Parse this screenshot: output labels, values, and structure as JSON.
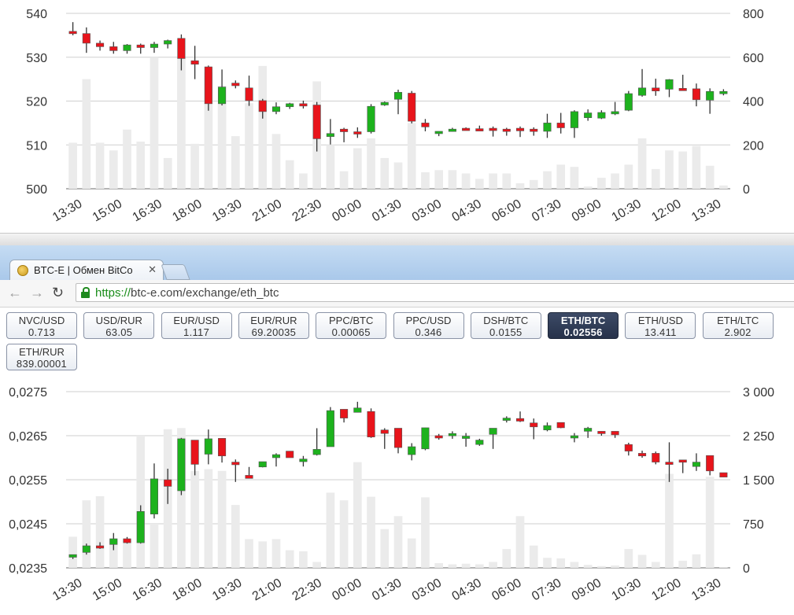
{
  "browser": {
    "tab_title": "BTC-E | Обмен BitCo",
    "tab_close": "✕",
    "url_scheme": "https://",
    "url_rest": "btc-e.com/exchange/eth_btc"
  },
  "pairs": [
    {
      "name": "NVC/USD",
      "price": "0.713",
      "active": false
    },
    {
      "name": "USD/RUR",
      "price": "63.05",
      "active": false
    },
    {
      "name": "EUR/USD",
      "price": "1.117",
      "active": false
    },
    {
      "name": "EUR/RUR",
      "price": "69.20035",
      "active": false
    },
    {
      "name": "PPC/BTC",
      "price": "0.00065",
      "active": false
    },
    {
      "name": "PPC/USD",
      "price": "0.346",
      "active": false
    },
    {
      "name": "DSH/BTC",
      "price": "0.0155",
      "active": false
    },
    {
      "name": "ETH/BTC",
      "price": "0.02556",
      "active": true
    },
    {
      "name": "ETH/USD",
      "price": "13.411",
      "active": false
    },
    {
      "name": "ETH/LTC",
      "price": "2.902",
      "active": false
    },
    {
      "name": "ETH/RUR",
      "price": "839.00001",
      "active": false
    }
  ],
  "chart_data": [
    {
      "type": "candlestick",
      "x_tick_labels": [
        "13:30",
        "15:00",
        "16:30",
        "18:00",
        "19:30",
        "21:00",
        "22:30",
        "00:00",
        "01:30",
        "03:00",
        "04:30",
        "06:00",
        "07:30",
        "09:00",
        "10:30",
        "12:00",
        "13:30"
      ],
      "y_left_ticks": [
        "500",
        "510",
        "520",
        "530",
        "540"
      ],
      "y_right_ticks": [
        "0",
        "200",
        "400",
        "600",
        "800"
      ],
      "ylim": [
        500,
        540
      ],
      "ylim_volume": [
        0,
        800
      ],
      "grid": true,
      "colors": {
        "up": "#1db21d",
        "down": "#e8141b",
        "volume": "#ebebeb",
        "wick": "#333333"
      },
      "candles": [
        [
          535.9,
          538.0,
          535.0,
          535.4,
          210
        ],
        [
          535.4,
          536.8,
          531.0,
          533.2,
          500
        ],
        [
          533.2,
          533.8,
          531.5,
          532.4,
          210
        ],
        [
          532.4,
          533.5,
          530.8,
          531.5,
          175
        ],
        [
          531.5,
          533.0,
          530.8,
          532.8,
          270
        ],
        [
          532.8,
          533.1,
          530.8,
          532.2,
          215
        ],
        [
          532.2,
          533.5,
          531.0,
          533.0,
          600
        ],
        [
          533.0,
          534.0,
          532.0,
          533.8,
          140
        ],
        [
          534.3,
          535.2,
          527.0,
          529.7,
          600
        ],
        [
          529.2,
          532.6,
          525.0,
          528.4,
          205
        ],
        [
          527.8,
          528.1,
          517.8,
          519.4,
          530
        ],
        [
          519.4,
          527.2,
          519.0,
          523.2,
          470
        ],
        [
          524.1,
          524.7,
          522.9,
          523.5,
          240
        ],
        [
          523.0,
          525.8,
          518.9,
          520.1,
          390
        ],
        [
          520.1,
          520.5,
          516.0,
          517.6,
          560
        ],
        [
          517.6,
          519.7,
          517.0,
          518.7,
          250
        ],
        [
          518.7,
          519.6,
          518.2,
          519.4,
          130
        ],
        [
          519.4,
          520.1,
          518.3,
          518.9,
          70
        ],
        [
          519.1,
          519.8,
          508.5,
          511.4,
          490
        ],
        [
          511.9,
          515.9,
          510.1,
          512.6,
          200
        ],
        [
          513.6,
          513.9,
          510.6,
          513.0,
          80
        ],
        [
          513.0,
          514.0,
          511.6,
          512.5,
          185
        ],
        [
          513.0,
          519.3,
          512.6,
          518.8,
          230
        ],
        [
          519.1,
          519.9,
          518.9,
          519.7,
          140
        ],
        [
          520.4,
          522.6,
          517.0,
          522.0,
          120
        ],
        [
          521.8,
          522.3,
          514.9,
          515.4,
          300
        ],
        [
          515.0,
          515.9,
          513.1,
          514.1,
          75
        ],
        [
          512.6,
          513.1,
          512.0,
          513.1,
          85
        ],
        [
          513.2,
          513.9,
          513.0,
          513.6,
          85
        ],
        [
          513.8,
          514.0,
          513.4,
          513.5,
          70
        ],
        [
          513.7,
          514.4,
          513.2,
          513.5,
          45
        ],
        [
          513.8,
          514.2,
          511.9,
          513.4,
          70
        ],
        [
          513.6,
          513.9,
          512.1,
          513.3,
          70
        ],
        [
          513.8,
          514.2,
          511.8,
          513.2,
          25
        ],
        [
          513.6,
          514.0,
          512.1,
          513.1,
          40
        ],
        [
          513.1,
          517.1,
          511.6,
          515.0,
          80
        ],
        [
          515.0,
          517.3,
          512.6,
          513.9,
          110
        ],
        [
          513.9,
          517.9,
          511.6,
          517.6,
          100
        ],
        [
          516.2,
          518.1,
          515.5,
          517.3,
          10
        ],
        [
          516.1,
          517.9,
          515.9,
          517.4,
          50
        ],
        [
          517.1,
          519.8,
          516.8,
          517.6,
          70
        ],
        [
          517.9,
          522.3,
          517.7,
          521.7,
          110
        ],
        [
          521.3,
          527.3,
          521.0,
          523.0,
          230
        ],
        [
          523.0,
          525.1,
          521.2,
          522.3,
          90
        ],
        [
          522.7,
          525.0,
          520.9,
          524.9,
          175
        ],
        [
          522.9,
          526.0,
          522.5,
          522.5,
          170
        ],
        [
          522.8,
          524.0,
          518.8,
          520.3,
          195
        ],
        [
          520.2,
          522.9,
          517.1,
          522.2,
          105
        ],
        [
          521.7,
          522.7,
          521.3,
          522.2,
          15
        ]
      ]
    },
    {
      "type": "candlestick",
      "x_tick_labels": [
        "13:30",
        "15:00",
        "16:30",
        "18:00",
        "19:30",
        "21:00",
        "22:30",
        "00:00",
        "01:30",
        "03:00",
        "04:30",
        "06:00",
        "07:30",
        "09:00",
        "10:30",
        "12:00",
        "13:30"
      ],
      "y_left_ticks": [
        "0,0235",
        "0,0245",
        "0,0255",
        "0,0265",
        "0,0275"
      ],
      "y_right_ticks": [
        "0",
        "750",
        "1 500",
        "2 250",
        "3 000"
      ],
      "ylim": [
        0.0235,
        0.0275
      ],
      "ylim_volume": [
        0,
        3000
      ],
      "grid": true,
      "colors": {
        "up": "#1db21d",
        "down": "#e8141b",
        "volume": "#ebebeb",
        "wick": "#333333"
      },
      "candles": [
        [
          0.02374,
          0.0238,
          0.0237,
          0.0238,
          530
        ],
        [
          0.02385,
          0.02405,
          0.0238,
          0.024,
          1150
        ],
        [
          0.024,
          0.02408,
          0.02393,
          0.02395,
          1220
        ],
        [
          0.02403,
          0.02429,
          0.0239,
          0.02416,
          470
        ],
        [
          0.02416,
          0.0242,
          0.02405,
          0.02407,
          480
        ],
        [
          0.02407,
          0.02492,
          0.02405,
          0.02478,
          2250
        ],
        [
          0.02472,
          0.02587,
          0.02462,
          0.02552,
          750
        ],
        [
          0.0255,
          0.02575,
          0.02495,
          0.02535,
          2360
        ],
        [
          0.02525,
          0.02645,
          0.02515,
          0.02643,
          2380
        ],
        [
          0.0264,
          0.0264,
          0.0256,
          0.02585,
          1650
        ],
        [
          0.02608,
          0.02664,
          0.02585,
          0.02643,
          1680
        ],
        [
          0.02644,
          0.02644,
          0.02589,
          0.02604,
          1650
        ],
        [
          0.0259,
          0.02596,
          0.02545,
          0.02584,
          1070
        ],
        [
          0.0256,
          0.02579,
          0.02553,
          0.02553,
          490
        ],
        [
          0.02579,
          0.02591,
          0.02578,
          0.02591,
          450
        ],
        [
          0.026,
          0.0261,
          0.0258,
          0.02607,
          490
        ],
        [
          0.02615,
          0.02615,
          0.026,
          0.026,
          300
        ],
        [
          0.02591,
          0.02604,
          0.0258,
          0.02597,
          280
        ],
        [
          0.02607,
          0.02667,
          0.02605,
          0.02619,
          100
        ],
        [
          0.02625,
          0.02715,
          0.02625,
          0.02707,
          1280
        ],
        [
          0.0271,
          0.0271,
          0.0268,
          0.0269,
          1150
        ],
        [
          0.02703,
          0.02727,
          0.02703,
          0.02713,
          1800
        ],
        [
          0.02705,
          0.02712,
          0.02645,
          0.02647,
          1210
        ],
        [
          0.02663,
          0.02667,
          0.0262,
          0.02655,
          660
        ],
        [
          0.02667,
          0.02667,
          0.0261,
          0.02623,
          880
        ],
        [
          0.02607,
          0.02633,
          0.02594,
          0.02625,
          500
        ],
        [
          0.0262,
          0.02668,
          0.02617,
          0.02668,
          1200
        ],
        [
          0.0265,
          0.02654,
          0.02641,
          0.02645,
          80
        ],
        [
          0.0265,
          0.0266,
          0.02643,
          0.02655,
          60
        ],
        [
          0.02645,
          0.02656,
          0.02625,
          0.02649,
          70
        ],
        [
          0.0263,
          0.02643,
          0.02627,
          0.0264,
          60
        ],
        [
          0.02653,
          0.02667,
          0.0262,
          0.02667,
          100
        ],
        [
          0.02687,
          0.02694,
          0.0268,
          0.0269,
          320
        ],
        [
          0.02689,
          0.02705,
          0.02681,
          0.02683,
          880
        ],
        [
          0.02679,
          0.02689,
          0.02642,
          0.0267,
          380
        ],
        [
          0.02663,
          0.0268,
          0.0266,
          0.02673,
          170
        ],
        [
          0.0268,
          0.0268,
          0.02667,
          0.02668,
          160
        ],
        [
          0.0265,
          0.02656,
          0.02635,
          0.0265,
          100
        ],
        [
          0.0266,
          0.0267,
          0.02645,
          0.02667,
          50
        ],
        [
          0.0266,
          0.0266,
          0.0265,
          0.02655,
          30
        ],
        [
          0.0266,
          0.0266,
          0.02645,
          0.02652,
          40
        ],
        [
          0.0263,
          0.02634,
          0.02605,
          0.02615,
          320
        ],
        [
          0.0261,
          0.02616,
          0.026,
          0.02604,
          220
        ],
        [
          0.0261,
          0.02614,
          0.02585,
          0.0259,
          100
        ],
        [
          0.0259,
          0.02635,
          0.02545,
          0.02585,
          1600
        ],
        [
          0.02595,
          0.02595,
          0.02565,
          0.0259,
          120
        ],
        [
          0.0258,
          0.0261,
          0.0257,
          0.0259,
          230
        ],
        [
          0.02605,
          0.02605,
          0.0256,
          0.0257,
          1550
        ],
        [
          0.02566,
          0.02566,
          0.02556,
          0.02556,
          10
        ]
      ]
    }
  ]
}
